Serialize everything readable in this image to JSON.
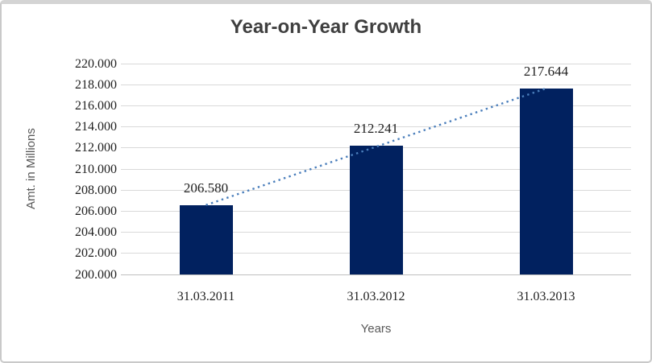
{
  "frame": {
    "background": "#ffffff",
    "border_color": "#c9c9c9"
  },
  "chart_data": {
    "type": "bar",
    "title": "Year-on-Year Growth",
    "xlabel": "Years",
    "ylabel": "Amt. in Millions",
    "categories": [
      "31.03.2011",
      "31.03.2012",
      "31.03.2013"
    ],
    "values": [
      206.58,
      212.241,
      217.644
    ],
    "data_labels": [
      "206.580",
      "212.241",
      "217.644"
    ],
    "ylim": [
      200,
      220
    ],
    "y_ticks": [
      {
        "v": 200,
        "label": "200.000"
      },
      {
        "v": 202,
        "label": "202.000"
      },
      {
        "v": 204,
        "label": "204.000"
      },
      {
        "v": 206,
        "label": "206.000"
      },
      {
        "v": 208,
        "label": "208.000"
      },
      {
        "v": 210,
        "label": "210.000"
      },
      {
        "v": 212,
        "label": "212.000"
      },
      {
        "v": 214,
        "label": "214.000"
      },
      {
        "v": 216,
        "label": "216.000"
      },
      {
        "v": 218,
        "label": "218.000"
      },
      {
        "v": 220,
        "label": "220.000"
      }
    ],
    "grid": true,
    "legend": "none",
    "trendline": {
      "type": "linear",
      "style": "dotted",
      "from": "31.03.2011",
      "to": "31.03.2013"
    },
    "colors": {
      "bar": "#01215f",
      "trendline": "#4a7ebb",
      "gridline": "#d9d9d9",
      "axis_line": "#bfbfbf",
      "title_text": "#3f3f3f",
      "axis_title_text": "#595959",
      "tick_text": "#1f1f1f"
    }
  }
}
